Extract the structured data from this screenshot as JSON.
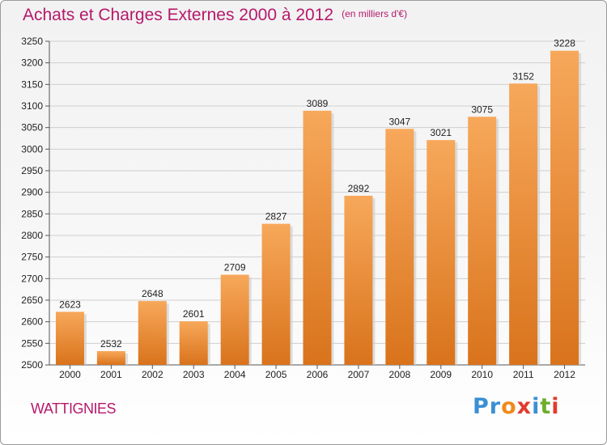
{
  "header": {
    "title": "Achats et Charges Externes 2000 à 2012",
    "unit": "(en milliers d'€)"
  },
  "footer": {
    "commune": "WATTIGNIES",
    "logo": [
      "Pr",
      "o",
      "x",
      "i",
      "t",
      "i"
    ]
  },
  "colors": {
    "title": "#b5196b",
    "bar_top": "#f7a85a",
    "bar_bottom": "#d9731c",
    "grid": "#cfcfcf"
  },
  "chart_data": {
    "type": "bar",
    "title": "Achats et Charges Externes 2000 à 2012",
    "subtitle": "(en milliers d'€)",
    "categories": [
      "2000",
      "2001",
      "2002",
      "2003",
      "2004",
      "2005",
      "2006",
      "2007",
      "2008",
      "2009",
      "2010",
      "2011",
      "2012"
    ],
    "values": [
      2623,
      2532,
      2648,
      2601,
      2709,
      2827,
      3089,
      2892,
      3047,
      3021,
      3075,
      3152,
      3228
    ],
    "ylim": [
      2500,
      3250
    ],
    "yticks": [
      2500,
      2550,
      2600,
      2650,
      2700,
      2750,
      2800,
      2850,
      2900,
      2950,
      3000,
      3050,
      3100,
      3150,
      3200,
      3250
    ],
    "grid": true,
    "xlabel": "",
    "ylabel": ""
  }
}
